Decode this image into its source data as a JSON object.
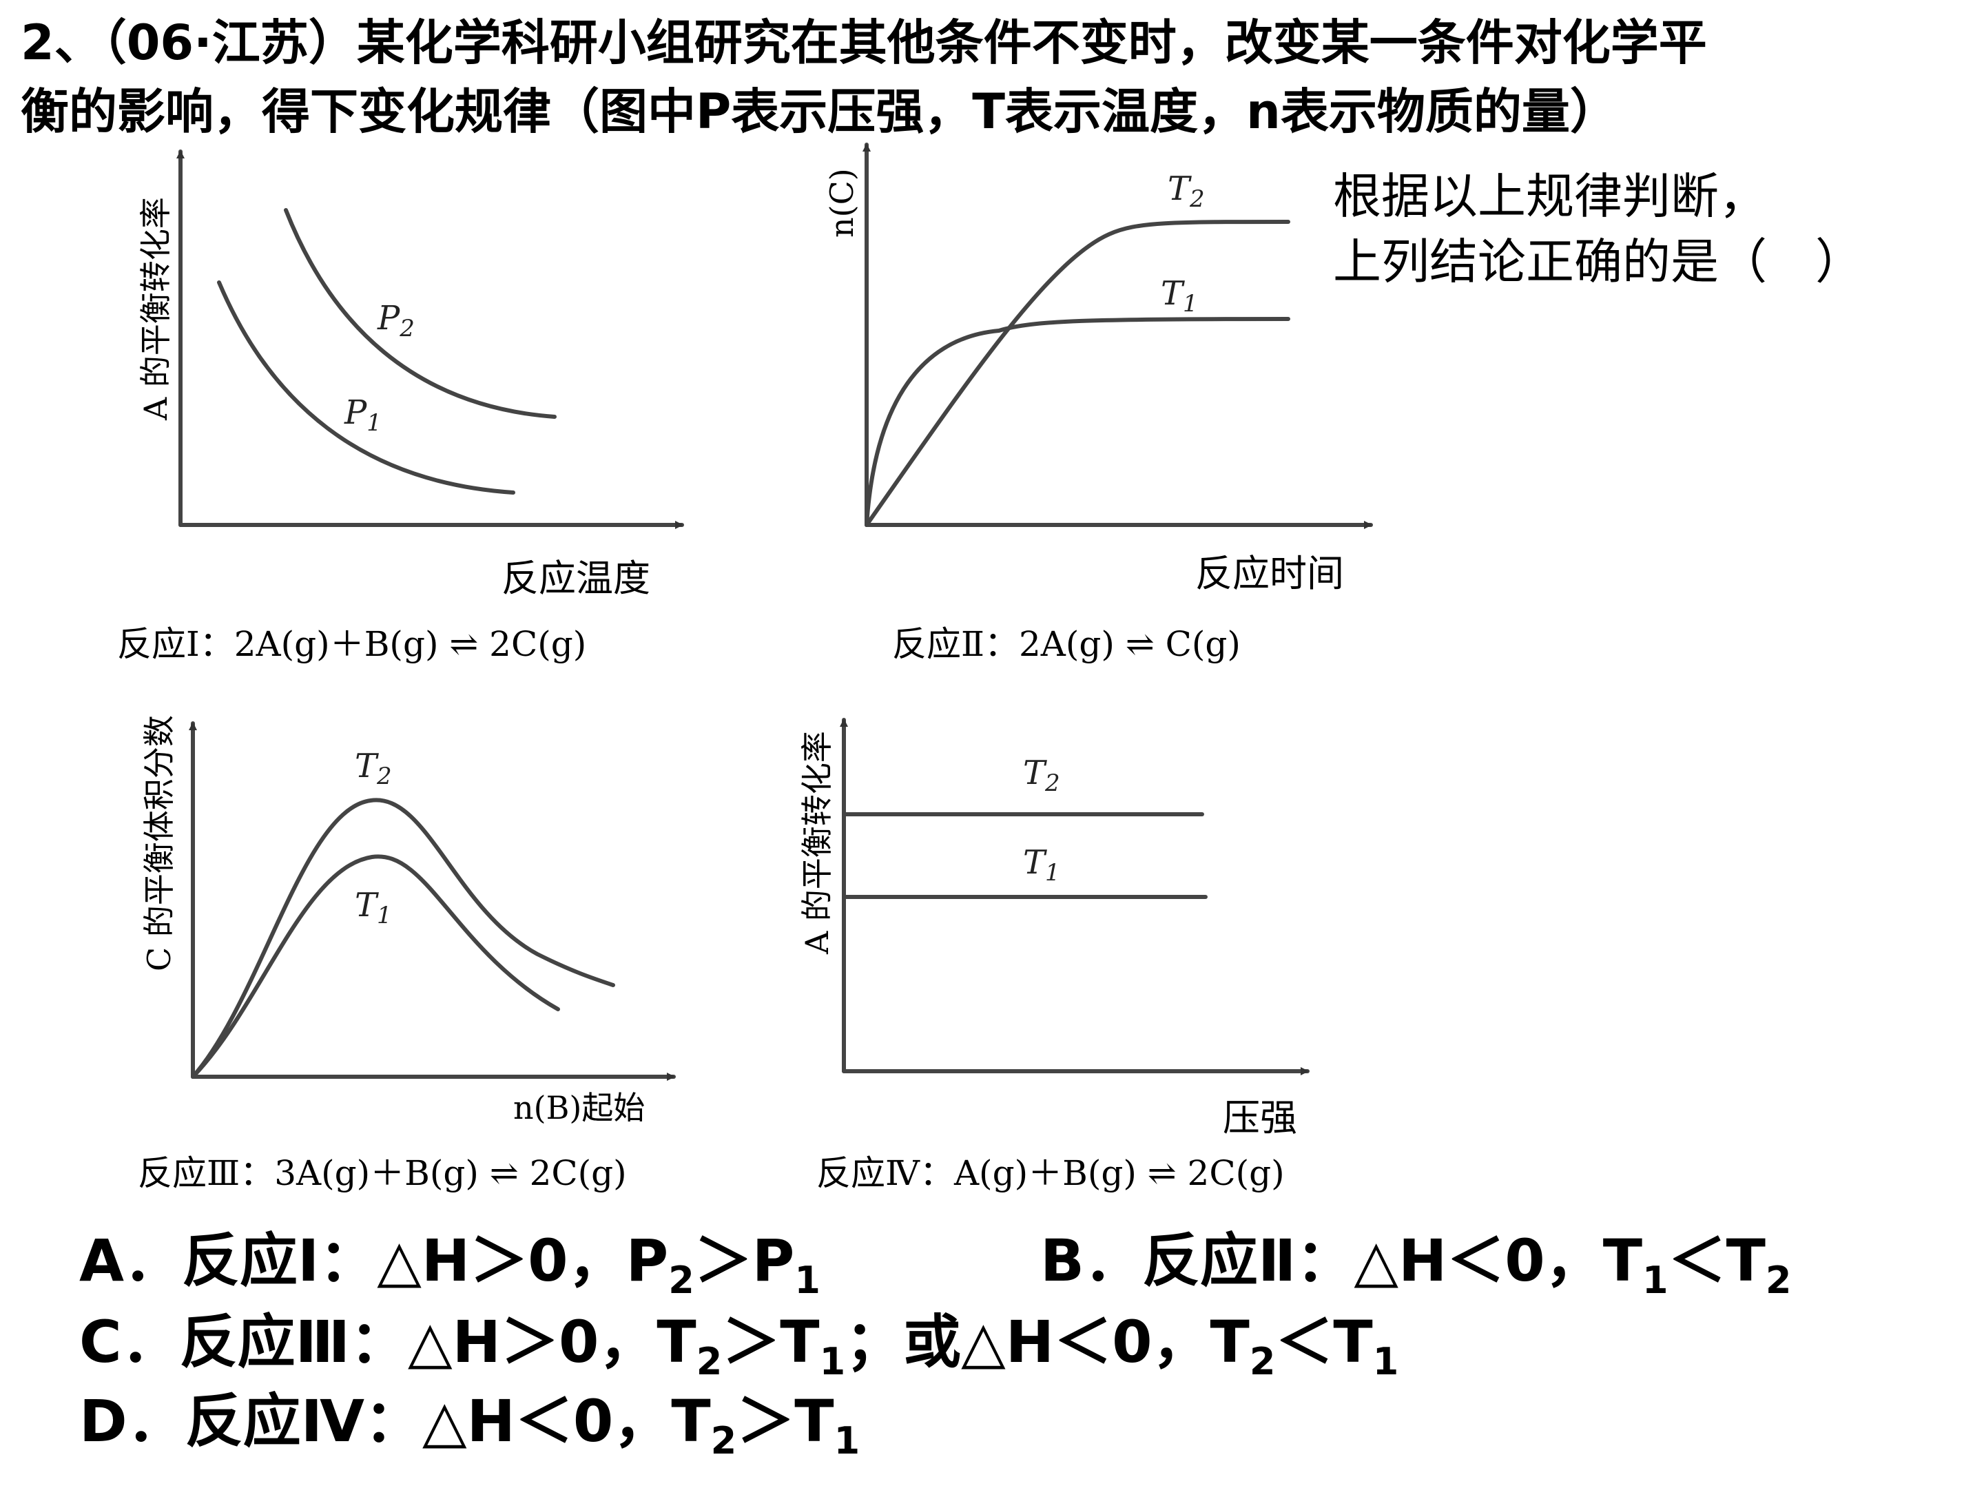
{
  "question": {
    "line1": "2、（06·江苏）某化学科研小组研究在其他条件不变时，改变某一条件对化学平",
    "line2": "衡的影响，得下变化规律（图中P表示压强，T表示温度，n表示物质的量）",
    "side1": "根据以上规律判断，",
    "side2": "上列结论正确的是（　）"
  },
  "graphs": {
    "g1": {
      "ylabel": "A 的平衡转化率",
      "xlabel": "反应温度",
      "curve_top": "P",
      "curve_top_sub": "2",
      "curve_bot": "P",
      "curve_bot_sub": "1",
      "reaction": "反应Ⅰ：2A(g)＋B(g) ⇌ 2C(g)"
    },
    "g2": {
      "ylabel": "n(C)",
      "xlabel": "反应时间",
      "curve_top": "T",
      "curve_top_sub": "2",
      "curve_bot": "T",
      "curve_bot_sub": "1",
      "reaction": "反应Ⅱ：2A(g) ⇌ C(g)"
    },
    "g3": {
      "ylabel": "C 的平衡体积分数",
      "xlabel": "n(B)起始",
      "curve_top": "T",
      "curve_top_sub": "2",
      "curve_bot": "T",
      "curve_bot_sub": "1",
      "reaction": "反应Ⅲ：3A(g)＋B(g) ⇌ 2C(g)"
    },
    "g4": {
      "ylabel": "A 的平衡转化率",
      "xlabel": "压强",
      "curve_top": "T",
      "curve_top_sub": "2",
      "curve_bot": "T",
      "curve_bot_sub": "1",
      "reaction": "反应Ⅳ：A(g)＋B(g) ⇌ 2C(g)"
    }
  },
  "options": {
    "A": {
      "pre": "A．反应Ⅰ：△H＞0，P",
      "s1": "2",
      "mid": "＞P",
      "s2": "1"
    },
    "B": {
      "pre": "B．反应Ⅱ：△H＜0，T",
      "s1": "1",
      "mid": "＜T",
      "s2": "2"
    },
    "C": {
      "pre": "C．反应Ⅲ：△H＞0，T",
      "s1": "2",
      "mid": "＞T",
      "s2": "1",
      "mid2": "；或△H＜0，T",
      "s3": "2",
      "mid3": "＜T",
      "s4": "1"
    },
    "D": {
      "pre": "D．反应Ⅳ：△H＜0，T",
      "s1": "2",
      "mid": "＞T",
      "s2": "1"
    }
  }
}
